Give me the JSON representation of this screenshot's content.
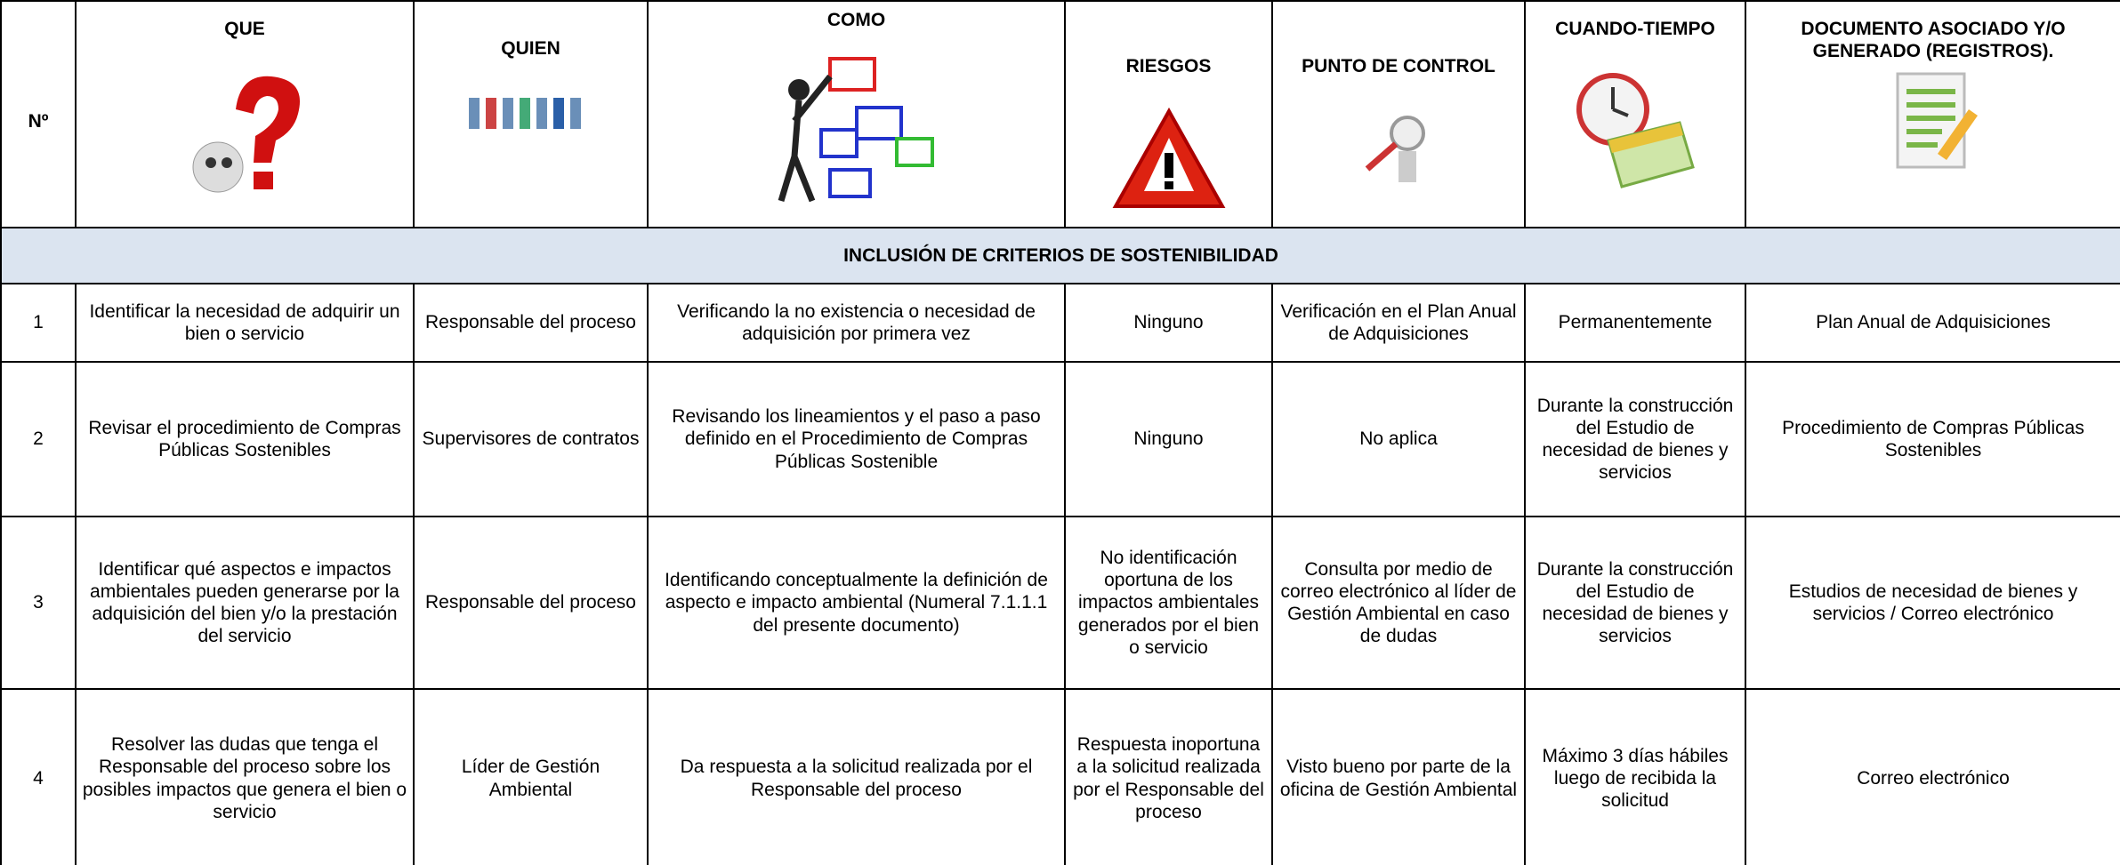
{
  "header": {
    "columns": [
      "Nº",
      "QUE",
      "QUIEN",
      "COMO",
      "RIESGOS",
      "PUNTO DE CONTROL",
      "CUANDO-TIEMPO",
      "DOCUMENTO ASOCIADO Y/O GENERADO (REGISTROS)."
    ]
  },
  "section": {
    "title": "INCLUSIÓN DE CRITERIOS DE SOSTENIBILIDAD"
  },
  "table": {
    "rows": [
      [
        "1",
        "Identificar la necesidad de adquirir un bien o servicio",
        "Responsable del proceso",
        "Verificando la no existencia o necesidad de adquisición por primera vez",
        "Ninguno",
        "Verificación en el Plan Anual de Adquisiciones",
        "Permanentemente",
        "Plan Anual de Adquisiciones"
      ],
      [
        "2",
        "Revisar el procedimiento de Compras Públicas Sostenibles",
        "Supervisores de contratos",
        "Revisando los lineamientos y el paso a paso definido en el Procedimiento de Compras Públicas Sostenible",
        "Ninguno",
        "No aplica",
        "Durante la construcción del Estudio de necesidad de bienes y servicios",
        "Procedimiento de Compras Públicas Sostenibles"
      ],
      [
        "3",
        "Identificar qué aspectos e impactos ambientales pueden generarse por la adquisición del bien y/o la prestación del servicio",
        "Responsable del proceso",
        "Identificando conceptualmente la definición de aspecto e impacto ambiental (Numeral 7.1.1.1 del presente documento)",
        "No identificación oportuna de los impactos ambientales generados por el bien o servicio",
        "Consulta por medio de correo electrónico al líder de Gestión Ambiental en caso de dudas",
        "Durante la construcción del Estudio de necesidad de bienes y servicios",
        "Estudios de necesidad de bienes y servicios / Correo electrónico"
      ],
      [
        "4",
        "Resolver las dudas que tenga el Responsable del proceso sobre los posibles impactos que genera el bien o servicio",
        "Líder de Gestión Ambiental",
        "Da respuesta a la solicitud realizada por el Responsable del proceso",
        "Respuesta inoportuna a la solicitud realizada por el Responsable del proceso",
        "Visto bueno por parte de la oficina de Gestión Ambiental",
        "Máximo 3 días hábiles luego de recibida la solicitud",
        "Correo electrónico"
      ]
    ]
  }
}
